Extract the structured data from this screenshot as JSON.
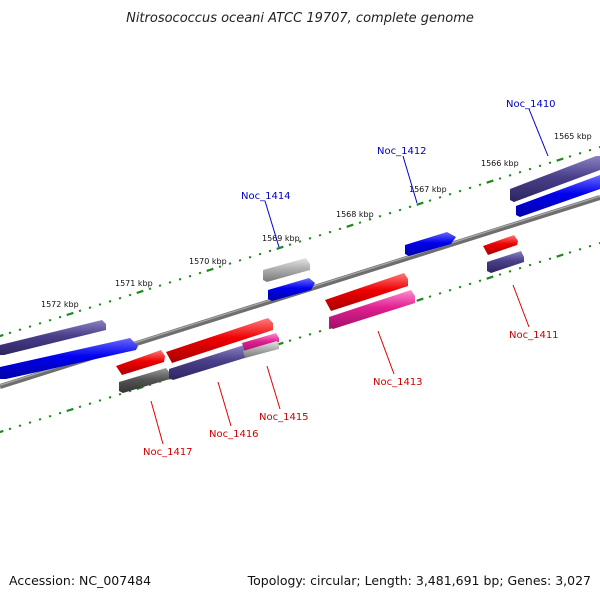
{
  "title": "Nitrosococcus oceani ATCC 19707, complete genome",
  "footer": {
    "accession": "Accession: NC_007484",
    "topology": "Topology: circular; Length: 3,481,691 bp; Genes: 3,027"
  },
  "ruler_labels": [
    "1572 kbp",
    "1571 kbp",
    "1570 kbp",
    "1569 kbp",
    "1568 kbp",
    "1567 kbp",
    "1566 kbp",
    "1565 kbp"
  ],
  "genes_top": [
    {
      "name": "Noc_1414"
    },
    {
      "name": "Noc_1412"
    },
    {
      "name": "Noc_1410"
    }
  ],
  "genes_bottom": [
    {
      "name": "Noc_1417"
    },
    {
      "name": "Noc_1416"
    },
    {
      "name": "Noc_1415"
    },
    {
      "name": "Noc_1413"
    },
    {
      "name": "Noc_1411"
    }
  ],
  "colors": {
    "backbone": "#8c8c8c",
    "tick": "#1a8a1a",
    "forward_blue": "#0000ee",
    "dark_purple": "#4a3f8a",
    "red": "#ee0000",
    "magenta": "#e0208f",
    "gray": "#9a9a9a",
    "dark_gray": "#555555",
    "label_blue": "#0000bb",
    "label_red": "#cc0000"
  }
}
